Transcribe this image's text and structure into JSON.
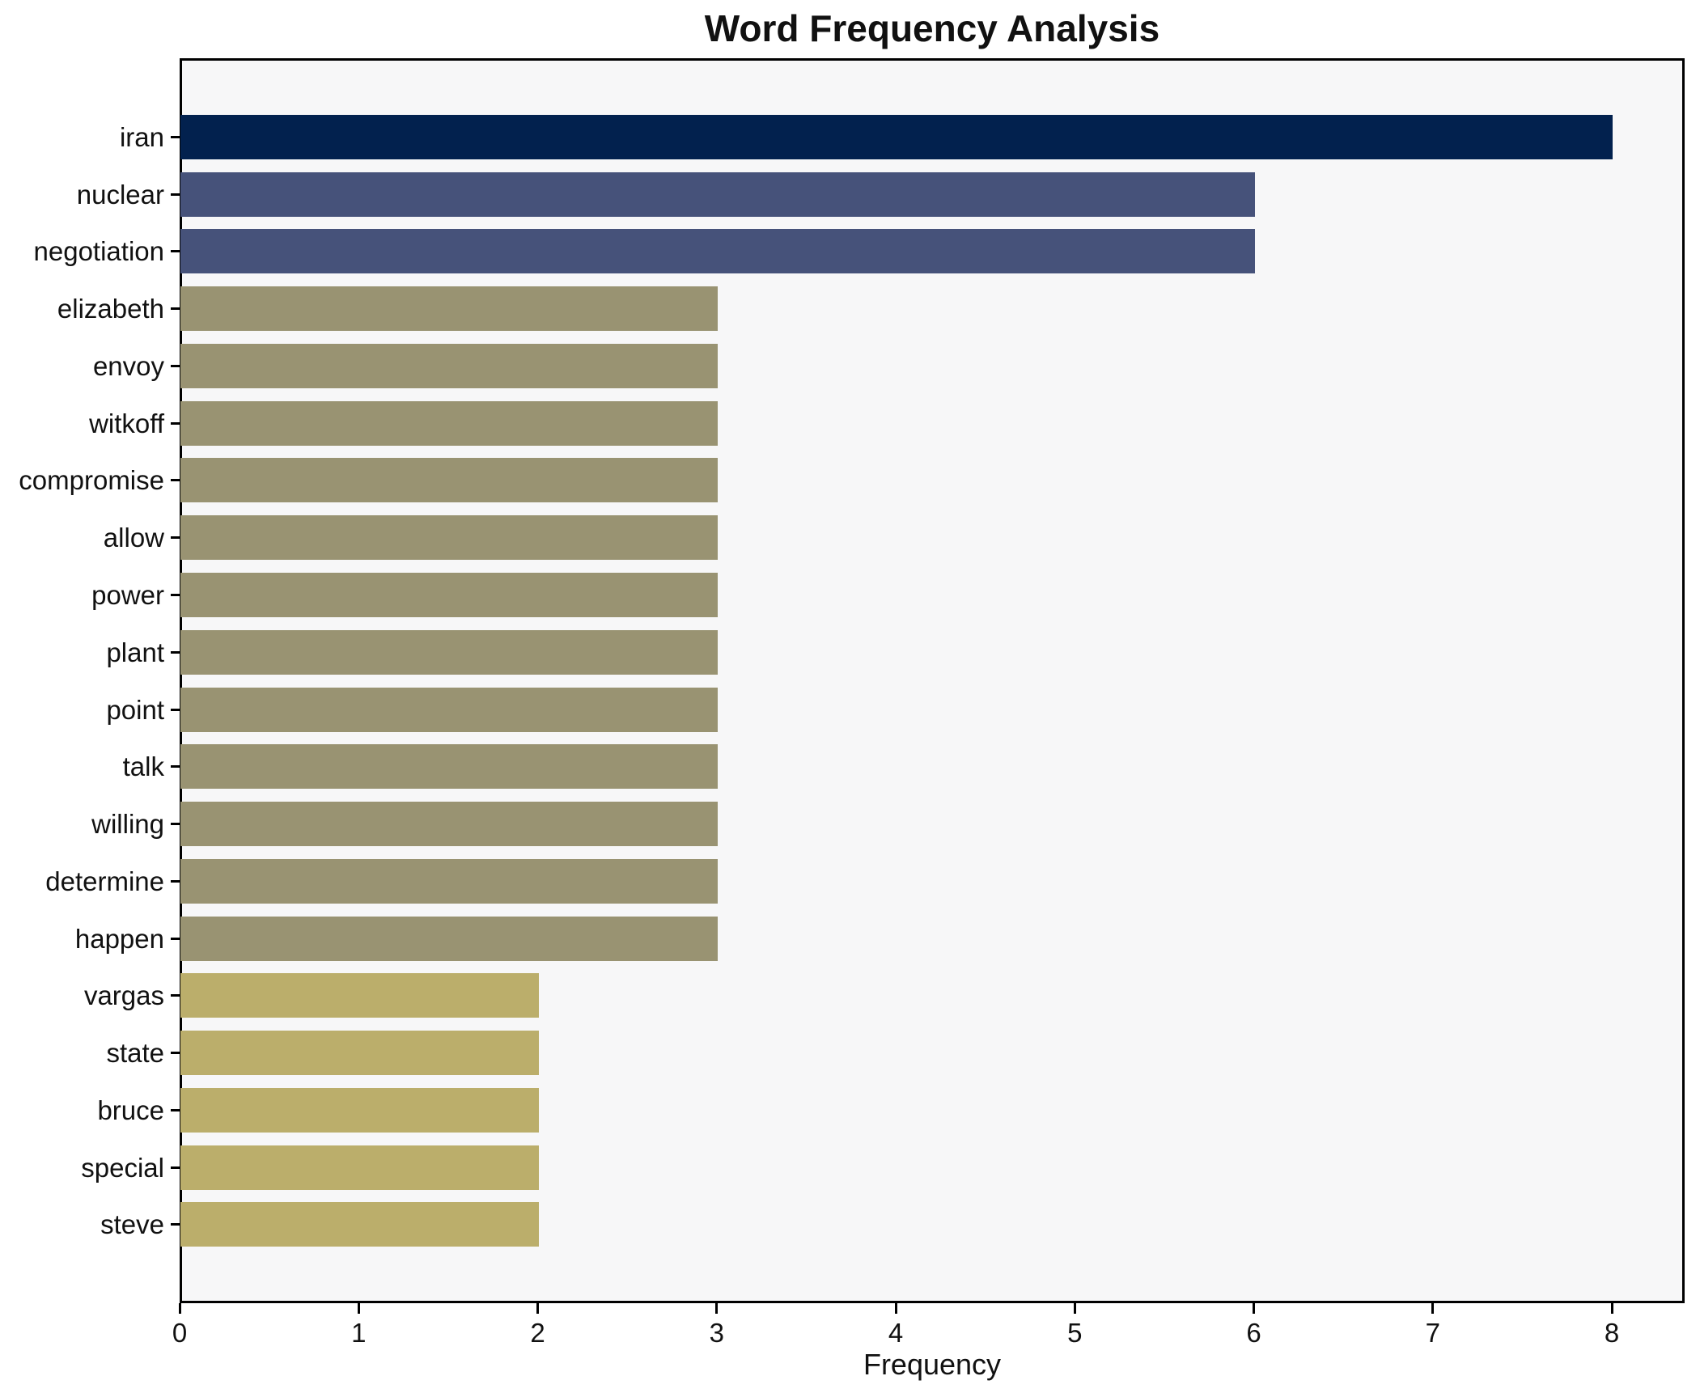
{
  "chart_data": {
    "type": "bar",
    "orientation": "horizontal",
    "title": "Word Frequency Analysis",
    "xlabel": "Frequency",
    "ylabel": "",
    "categories": [
      "iran",
      "nuclear",
      "negotiation",
      "elizabeth",
      "envoy",
      "witkoff",
      "compromise",
      "allow",
      "power",
      "plant",
      "point",
      "talk",
      "willing",
      "determine",
      "happen",
      "vargas",
      "state",
      "bruce",
      "special",
      "steve"
    ],
    "values": [
      8,
      6,
      6,
      3,
      3,
      3,
      3,
      3,
      3,
      3,
      3,
      3,
      3,
      3,
      3,
      2,
      2,
      2,
      2,
      2
    ],
    "bar_colors": [
      "#02214e",
      "#46527a",
      "#46527a",
      "#999372",
      "#999372",
      "#999372",
      "#999372",
      "#999372",
      "#999372",
      "#999372",
      "#999372",
      "#999372",
      "#999372",
      "#999372",
      "#999372",
      "#bbae6b",
      "#bbae6b",
      "#bbae6b",
      "#bbae6b",
      "#bbae6b"
    ],
    "xlim": [
      0,
      8
    ],
    "xticks": [
      0,
      1,
      2,
      3,
      4,
      5,
      6,
      7,
      8
    ],
    "grid": false,
    "plot_bg": "#f7f7f8",
    "figure_bg": "#ffffff",
    "spine_color": "#000000",
    "text_color": "#111111"
  }
}
